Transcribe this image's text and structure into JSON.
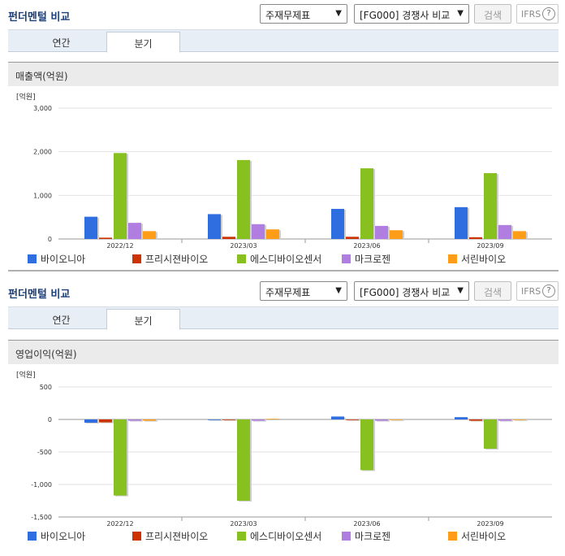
{
  "sections": [
    {
      "title": "펀더멘털 비교",
      "select_report": "주재무제표",
      "select_compare": "[FG000] 경쟁사 비교",
      "search_label": "검색",
      "ifrs_label": "IFRS",
      "help_label": "?",
      "tabs": [
        "연간",
        "분기"
      ],
      "active_tab": "분기",
      "metric": "매출액(억원)"
    },
    {
      "title": "펀더멘털 비교",
      "select_report": "주재무제표",
      "select_compare": "[FG000] 경쟁사 비교",
      "search_label": "검색",
      "ifrs_label": "IFRS",
      "help_label": "?",
      "tabs": [
        "연간",
        "분기"
      ],
      "active_tab": "분기",
      "metric": "영업이익(억원)"
    }
  ],
  "colors": {
    "series": [
      "#2e6ee0",
      "#cc3300",
      "#88c020",
      "#b07ee0",
      "#ff9d19"
    ]
  },
  "chart_data": [
    {
      "type": "bar",
      "title": "매출액(억원)",
      "unit_label": "[억원]",
      "categories": [
        "2022/12",
        "2023/03",
        "2023/06",
        "2023/09"
      ],
      "ylim": [
        0,
        3000
      ],
      "yticks": [
        0,
        1000,
        2000,
        3000
      ],
      "ytick_labels": [
        "0",
        "1,000",
        "2,000",
        "3,000"
      ],
      "grid": true,
      "legend_position": "bottom",
      "series": [
        {
          "name": "바이오니아",
          "values": [
            510,
            570,
            690,
            730
          ]
        },
        {
          "name": "프리시젼바이오",
          "values": [
            30,
            50,
            50,
            40
          ]
        },
        {
          "name": "에스디바이오센서",
          "values": [
            1970,
            1810,
            1620,
            1510
          ]
        },
        {
          "name": "마크로젠",
          "values": [
            370,
            340,
            300,
            320
          ]
        },
        {
          "name": "서린바이오",
          "values": [
            180,
            220,
            200,
            180
          ]
        }
      ]
    },
    {
      "type": "bar",
      "title": "영업이익(억원)",
      "unit_label": "[억원]",
      "categories": [
        "2022/12",
        "2023/03",
        "2023/06",
        "2023/09"
      ],
      "ylim": [
        -1500,
        500
      ],
      "yticks": [
        -1500,
        -1000,
        -500,
        0,
        500
      ],
      "ytick_labels": [
        "-1,500",
        "-1,000",
        "-500",
        "0",
        "500"
      ],
      "grid": true,
      "legend_position": "bottom",
      "series": [
        {
          "name": "바이오니아",
          "values": [
            -50,
            0,
            45,
            35
          ]
        },
        {
          "name": "프리시젼바이오",
          "values": [
            -45,
            -10,
            -5,
            -20
          ]
        },
        {
          "name": "에스디바이오센서",
          "values": [
            -1170,
            -1250,
            -780,
            -450
          ]
        },
        {
          "name": "마크로젠",
          "values": [
            -20,
            -20,
            -20,
            -20
          ]
        },
        {
          "name": "서린바이오",
          "values": [
            -20,
            10,
            0,
            0
          ]
        }
      ]
    }
  ]
}
